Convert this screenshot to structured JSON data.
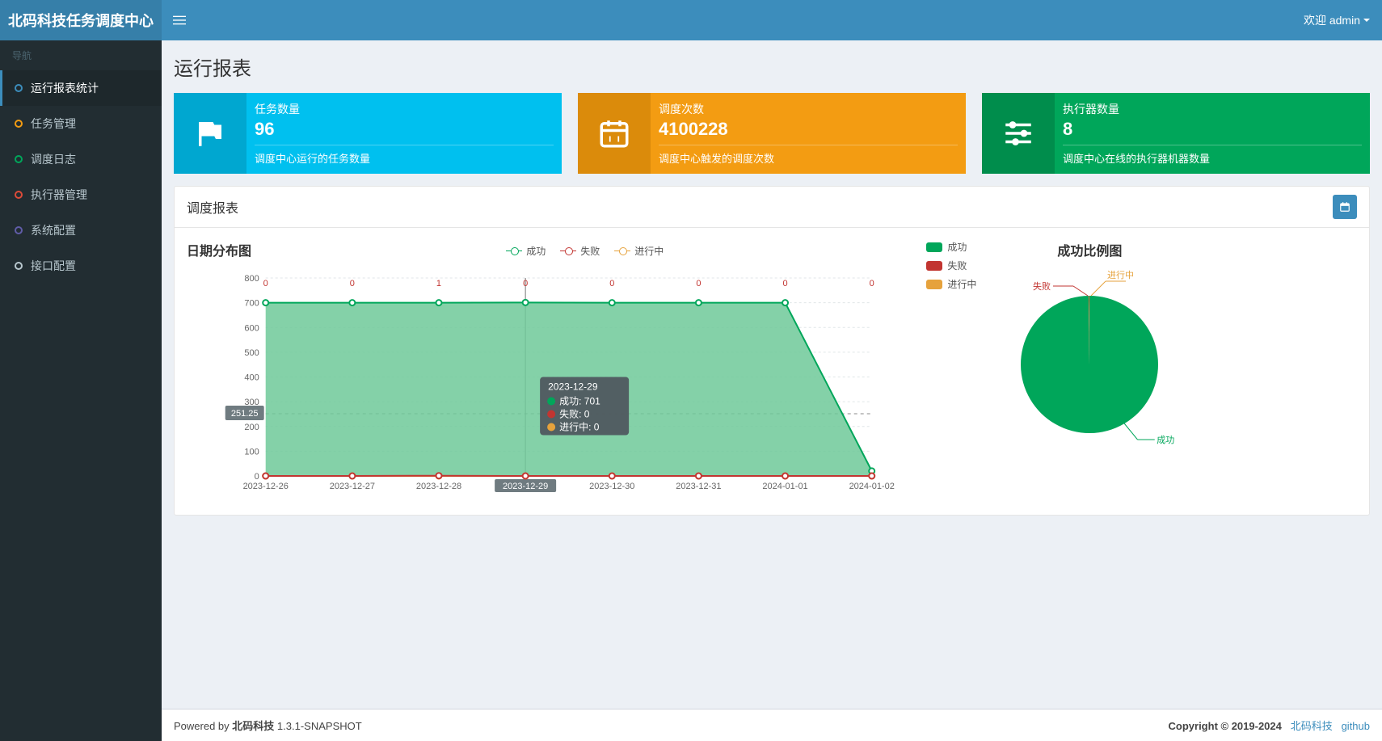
{
  "app_title": "北码科技任务调度中心",
  "welcome_prefix": "欢迎",
  "welcome_user": "admin",
  "sidebar": {
    "header": "导航",
    "items": [
      {
        "label": "运行报表统计",
        "bullet_color": "#3c8dbc",
        "active": true
      },
      {
        "label": "任务管理",
        "bullet_color": "#f39c12",
        "active": false
      },
      {
        "label": "调度日志",
        "bullet_color": "#00a65a",
        "active": false
      },
      {
        "label": "执行器管理",
        "bullet_color": "#dd4b39",
        "active": false
      },
      {
        "label": "系统配置",
        "bullet_color": "#605ca8",
        "active": false
      },
      {
        "label": "接口配置",
        "bullet_color": "#b8c7ce",
        "active": false
      }
    ]
  },
  "page_title": "运行报表",
  "info_boxes": [
    {
      "label": "任务数量",
      "value": "96",
      "desc": "调度中心运行的任务数量",
      "theme": "bg-aqua",
      "icon": "flag"
    },
    {
      "label": "调度次数",
      "value": "4100228",
      "desc": "调度中心触发的调度次数",
      "theme": "bg-yellow",
      "icon": "calendar"
    },
    {
      "label": "执行器数量",
      "value": "8",
      "desc": "调度中心在线的执行器机器数量",
      "theme": "bg-green",
      "icon": "sliders"
    }
  ],
  "panel_title": "调度报表",
  "line_chart": {
    "title": "日期分布图",
    "legend": [
      {
        "name": "成功",
        "color": "#00a65a"
      },
      {
        "name": "失败",
        "color": "#c23531"
      },
      {
        "name": "进行中",
        "color": "#e6a23c"
      }
    ],
    "x_labels": [
      "2023-12-26",
      "2023-12-27",
      "2023-12-28",
      "2023-12-29",
      "2023-12-30",
      "2023-12-31",
      "2024-01-01",
      "2024-01-02"
    ],
    "y_max": 800,
    "y_step": 100,
    "series_success": [
      700,
      700,
      700,
      701,
      700,
      700,
      700,
      20
    ],
    "series_fail": [
      0,
      0,
      1,
      0,
      0,
      0,
      0,
      0
    ],
    "series_running": [
      0,
      0,
      0,
      0,
      0,
      0,
      0,
      0
    ],
    "hover_index": 3,
    "hover_avg_label": "251.25",
    "tooltip": {
      "date": "2023-12-29",
      "rows": [
        {
          "label": "成功",
          "value": "701",
          "color": "#00a65a"
        },
        {
          "label": "失败",
          "value": "0",
          "color": "#c23531"
        },
        {
          "label": "进行中",
          "value": "0",
          "color": "#e6a23c"
        }
      ]
    },
    "colors": {
      "success": "#00a65a",
      "success_fill": "#6fc999",
      "fail": "#c23531",
      "running": "#e6a23c",
      "grid": "#e0e6e8",
      "axis": "#666"
    }
  },
  "pie_chart": {
    "title": "成功比例图",
    "legend": [
      {
        "name": "成功",
        "color": "#00a65a"
      },
      {
        "name": "失败",
        "color": "#c23531"
      },
      {
        "name": "进行中",
        "color": "#e6a23c"
      }
    ],
    "slices": [
      {
        "label": "成功",
        "value": 99.8,
        "color": "#00a65a"
      },
      {
        "label": "失败",
        "value": 0.1,
        "color": "#c23531"
      },
      {
        "label": "进行中",
        "value": 0.1,
        "color": "#e6a23c"
      }
    ]
  },
  "footer": {
    "left_prefix": "Powered by",
    "left_brand": "北码科技",
    "left_version": "1.3.1-SNAPSHOT",
    "right_copy": "Copyright © 2019-2024",
    "right_link1": "北码科技",
    "right_link2": "github"
  }
}
